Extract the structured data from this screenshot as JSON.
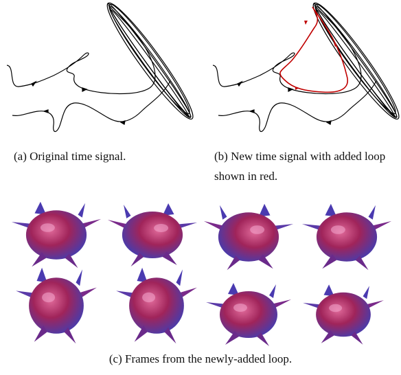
{
  "figure": {
    "subfigures": [
      {
        "caption": "(a) Original time signal."
      },
      {
        "caption": "(b) New time signal with added loop shown in red."
      }
    ],
    "caption": "(c) Frames from the newly-added loop."
  }
}
